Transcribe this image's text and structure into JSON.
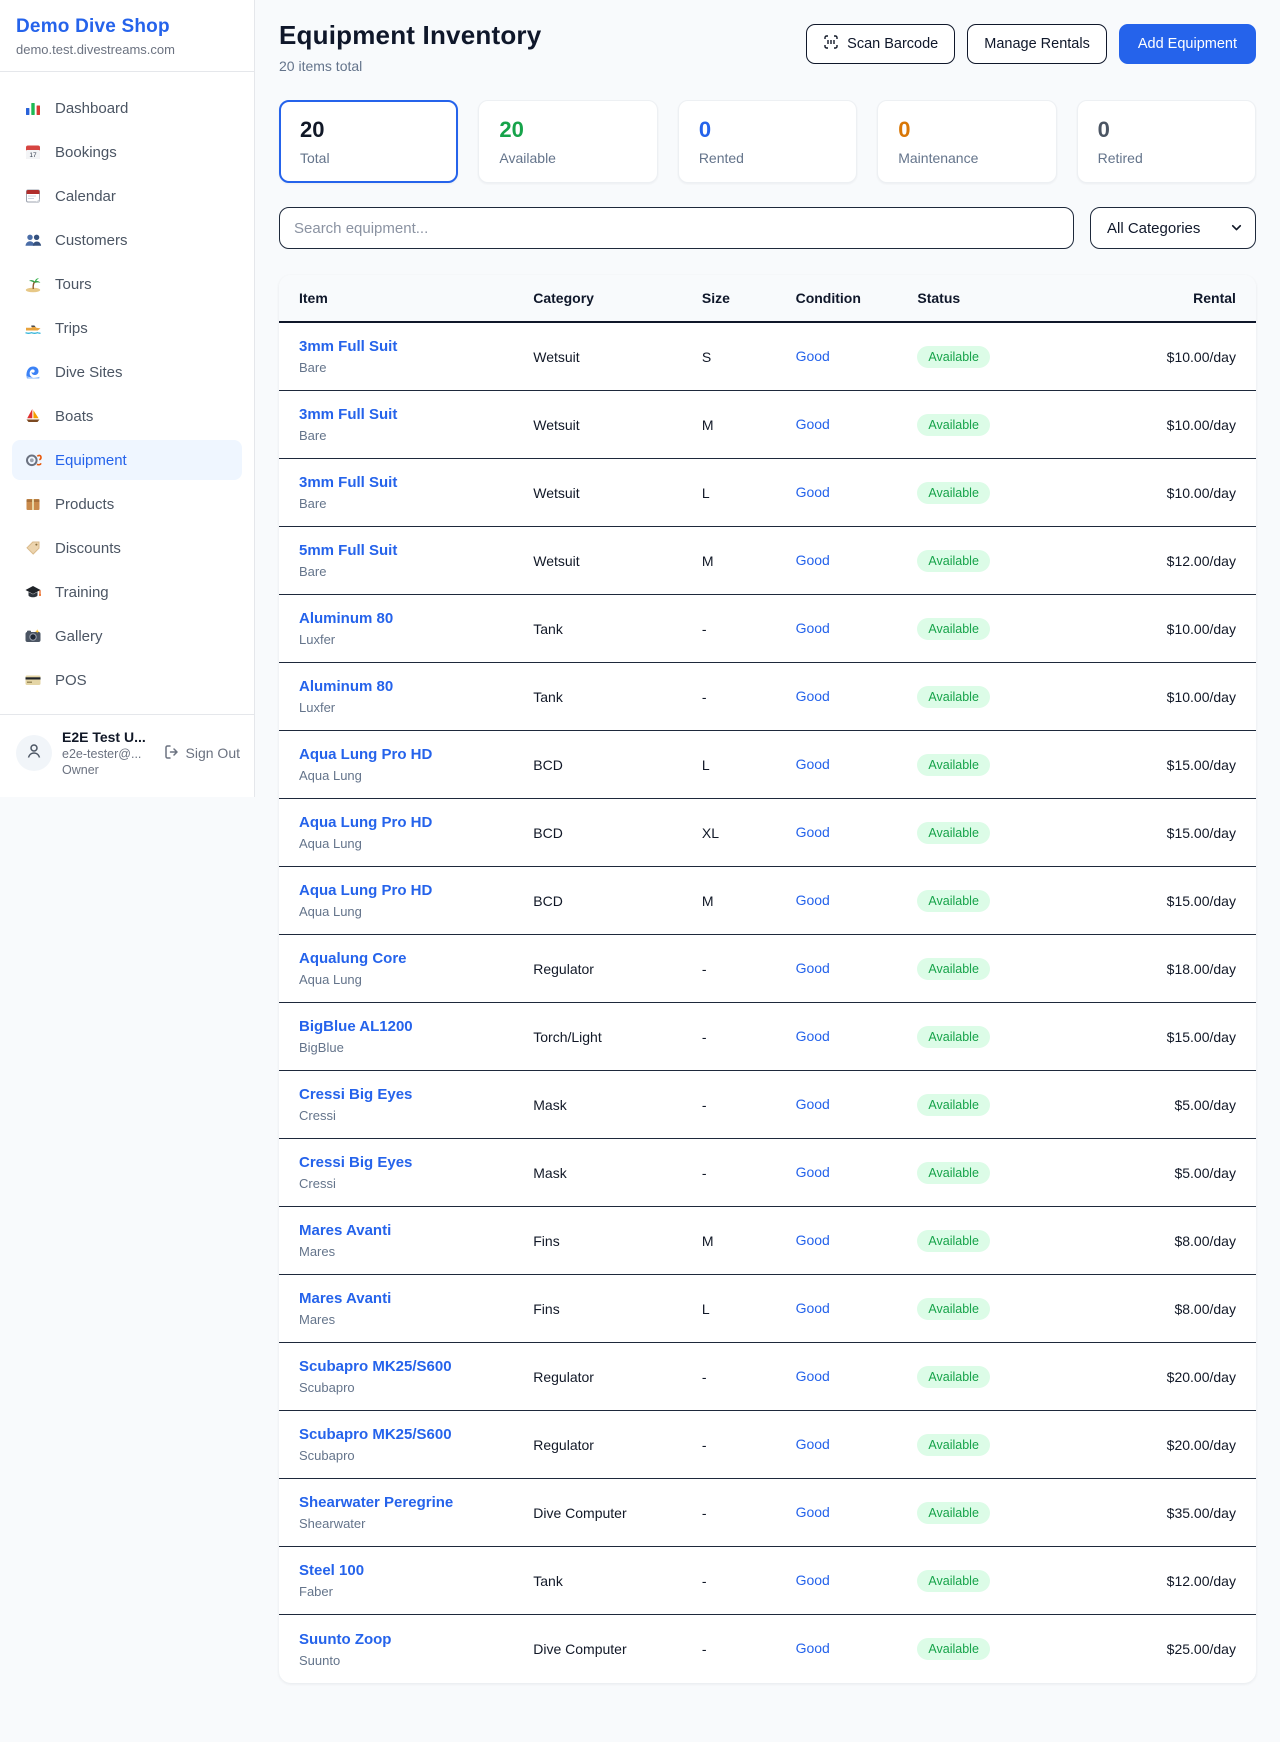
{
  "sidebar": {
    "brand": "Demo Dive Shop",
    "domain": "demo.test.divestreams.com",
    "active_item": "Equipment",
    "items": [
      {
        "label": "Dashboard",
        "icon": "bar-chart-icon"
      },
      {
        "label": "Bookings",
        "icon": "bookings-calendar-icon"
      },
      {
        "label": "Calendar",
        "icon": "calendar-icon"
      },
      {
        "label": "Customers",
        "icon": "customers-icon"
      },
      {
        "label": "Tours",
        "icon": "palm-island-icon"
      },
      {
        "label": "Trips",
        "icon": "speedboat-icon"
      },
      {
        "label": "Dive Sites",
        "icon": "wave-icon"
      },
      {
        "label": "Boats",
        "icon": "sailboat-icon"
      },
      {
        "label": "Equipment",
        "icon": "dive-mask-icon"
      },
      {
        "label": "Products",
        "icon": "package-icon"
      },
      {
        "label": "Discounts",
        "icon": "tag-icon"
      },
      {
        "label": "Training",
        "icon": "graduation-cap-icon"
      },
      {
        "label": "Gallery",
        "icon": "camera-icon"
      },
      {
        "label": "POS",
        "icon": "credit-card-icon"
      }
    ],
    "user": {
      "name": "E2E Test U...",
      "email": "e2e-tester@...",
      "role": "Owner",
      "signout_label": "Sign Out"
    }
  },
  "header": {
    "title": "Equipment Inventory",
    "subtitle": "20 items total",
    "scan_label": "Scan Barcode",
    "manage_label": "Manage Rentals",
    "add_label": "Add Equipment"
  },
  "stats": [
    {
      "value": "20",
      "label": "Total",
      "color": "#111827",
      "selected": true
    },
    {
      "value": "20",
      "label": "Available",
      "color": "#16a34a",
      "selected": false
    },
    {
      "value": "0",
      "label": "Rented",
      "color": "#2563eb",
      "selected": false
    },
    {
      "value": "0",
      "label": "Maintenance",
      "color": "#d97706",
      "selected": false
    },
    {
      "value": "0",
      "label": "Retired",
      "color": "#4b5563",
      "selected": false
    }
  ],
  "filters": {
    "search_placeholder": "Search equipment...",
    "category_value": "All Categories"
  },
  "table": {
    "columns": [
      "Item",
      "Category",
      "Size",
      "Condition",
      "Status",
      "Rental"
    ],
    "rows": [
      {
        "name": "3mm Full Suit",
        "brand": "Bare",
        "category": "Wetsuit",
        "size": "S",
        "condition": "Good",
        "status": "Available",
        "rental": "$10.00/day"
      },
      {
        "name": "3mm Full Suit",
        "brand": "Bare",
        "category": "Wetsuit",
        "size": "M",
        "condition": "Good",
        "status": "Available",
        "rental": "$10.00/day"
      },
      {
        "name": "3mm Full Suit",
        "brand": "Bare",
        "category": "Wetsuit",
        "size": "L",
        "condition": "Good",
        "status": "Available",
        "rental": "$10.00/day"
      },
      {
        "name": "5mm Full Suit",
        "brand": "Bare",
        "category": "Wetsuit",
        "size": "M",
        "condition": "Good",
        "status": "Available",
        "rental": "$12.00/day"
      },
      {
        "name": "Aluminum 80",
        "brand": "Luxfer",
        "category": "Tank",
        "size": "-",
        "condition": "Good",
        "status": "Available",
        "rental": "$10.00/day"
      },
      {
        "name": "Aluminum 80",
        "brand": "Luxfer",
        "category": "Tank",
        "size": "-",
        "condition": "Good",
        "status": "Available",
        "rental": "$10.00/day"
      },
      {
        "name": "Aqua Lung Pro HD",
        "brand": "Aqua Lung",
        "category": "BCD",
        "size": "L",
        "condition": "Good",
        "status": "Available",
        "rental": "$15.00/day"
      },
      {
        "name": "Aqua Lung Pro HD",
        "brand": "Aqua Lung",
        "category": "BCD",
        "size": "XL",
        "condition": "Good",
        "status": "Available",
        "rental": "$15.00/day"
      },
      {
        "name": "Aqua Lung Pro HD",
        "brand": "Aqua Lung",
        "category": "BCD",
        "size": "M",
        "condition": "Good",
        "status": "Available",
        "rental": "$15.00/day"
      },
      {
        "name": "Aqualung Core",
        "brand": "Aqua Lung",
        "category": "Regulator",
        "size": "-",
        "condition": "Good",
        "status": "Available",
        "rental": "$18.00/day"
      },
      {
        "name": "BigBlue AL1200",
        "brand": "BigBlue",
        "category": "Torch/Light",
        "size": "-",
        "condition": "Good",
        "status": "Available",
        "rental": "$15.00/day"
      },
      {
        "name": "Cressi Big Eyes",
        "brand": "Cressi",
        "category": "Mask",
        "size": "-",
        "condition": "Good",
        "status": "Available",
        "rental": "$5.00/day"
      },
      {
        "name": "Cressi Big Eyes",
        "brand": "Cressi",
        "category": "Mask",
        "size": "-",
        "condition": "Good",
        "status": "Available",
        "rental": "$5.00/day"
      },
      {
        "name": "Mares Avanti",
        "brand": "Mares",
        "category": "Fins",
        "size": "M",
        "condition": "Good",
        "status": "Available",
        "rental": "$8.00/day"
      },
      {
        "name": "Mares Avanti",
        "brand": "Mares",
        "category": "Fins",
        "size": "L",
        "condition": "Good",
        "status": "Available",
        "rental": "$8.00/day"
      },
      {
        "name": "Scubapro MK25/S600",
        "brand": "Scubapro",
        "category": "Regulator",
        "size": "-",
        "condition": "Good",
        "status": "Available",
        "rental": "$20.00/day"
      },
      {
        "name": "Scubapro MK25/S600",
        "brand": "Scubapro",
        "category": "Regulator",
        "size": "-",
        "condition": "Good",
        "status": "Available",
        "rental": "$20.00/day"
      },
      {
        "name": "Shearwater Peregrine",
        "brand": "Shearwater",
        "category": "Dive Computer",
        "size": "-",
        "condition": "Good",
        "status": "Available",
        "rental": "$35.00/day"
      },
      {
        "name": "Steel 100",
        "brand": "Faber",
        "category": "Tank",
        "size": "-",
        "condition": "Good",
        "status": "Available",
        "rental": "$12.00/day"
      },
      {
        "name": "Suunto Zoop",
        "brand": "Suunto",
        "category": "Dive Computer",
        "size": "-",
        "condition": "Good",
        "status": "Available",
        "rental": "$25.00/day"
      }
    ]
  },
  "colors": {
    "accent": "#2563eb",
    "badge_bg": "#dcfce7",
    "badge_text": "#16a34a",
    "row_border": "#1e293b",
    "page_bg": "#f8fafc"
  }
}
